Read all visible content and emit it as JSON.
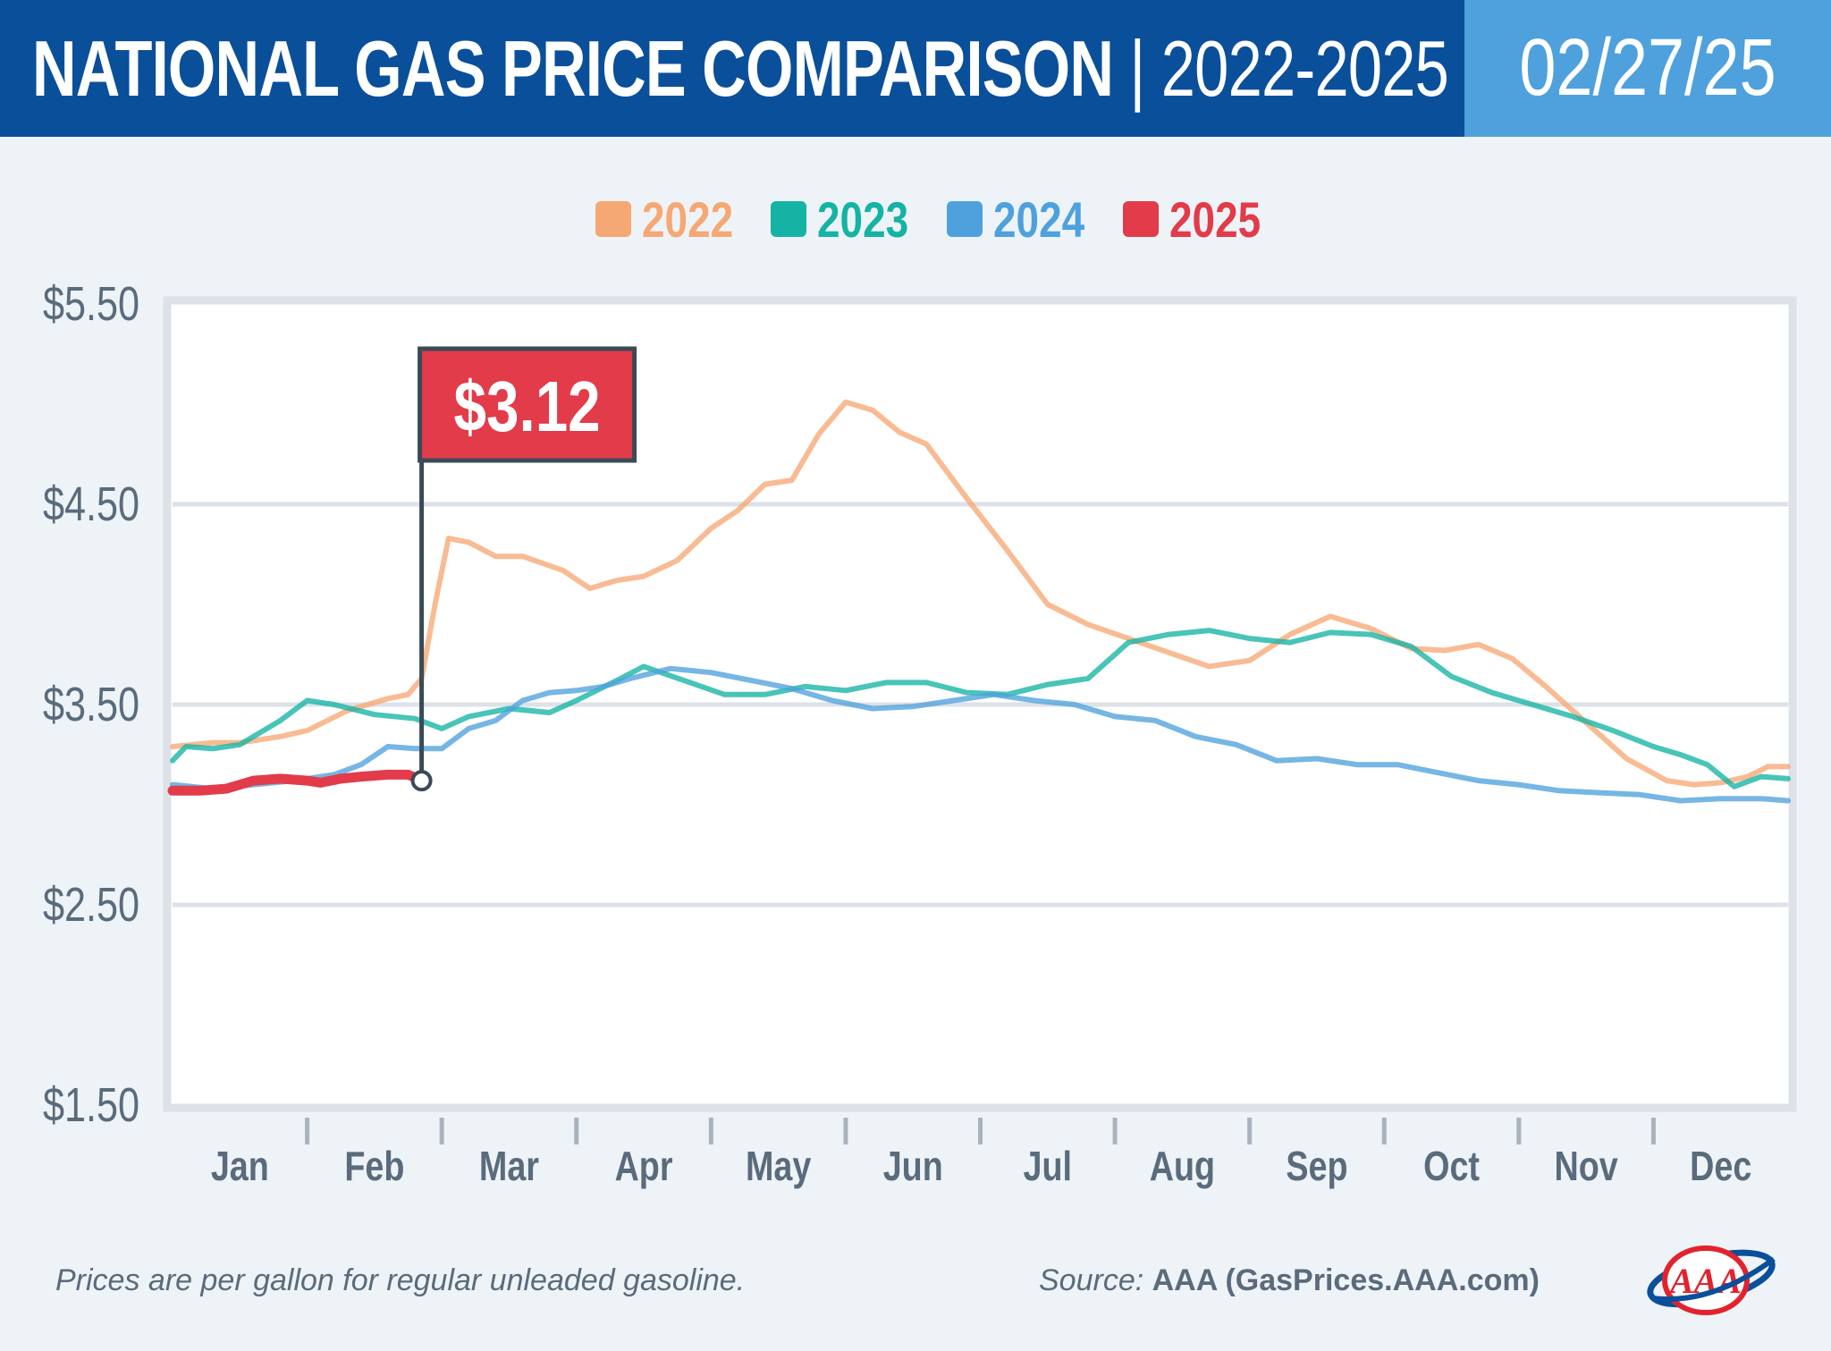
{
  "header": {
    "title_main": "NATIONAL GAS PRICE COMPARISON",
    "title_sep": " | ",
    "title_years": "2022-2025",
    "date": "02/27/25",
    "bg_color": "#0a4f9a",
    "date_bg_color": "#4ea1dc"
  },
  "legend": [
    {
      "label": "2022",
      "color": "#f6a874"
    },
    {
      "label": "2023",
      "color": "#15b3a4"
    },
    {
      "label": "2024",
      "color": "#4ea1dc"
    },
    {
      "label": "2025",
      "color": "#e23b4a"
    }
  ],
  "chart_data": {
    "type": "line",
    "title": "NATIONAL GAS PRICE COMPARISON | 2022-2025",
    "x_labels": [
      "Jan",
      "Feb",
      "Mar",
      "Apr",
      "May",
      "Jun",
      "Jul",
      "Aug",
      "Sep",
      "Oct",
      "Nov",
      "Dec"
    ],
    "x_range": [
      0,
      12
    ],
    "y_ticks": [
      "$5.50",
      "$4.50",
      "$3.50",
      "$2.50",
      "$1.50"
    ],
    "y_tick_values": [
      5.5,
      4.5,
      3.5,
      2.5,
      1.5
    ],
    "ylim": [
      1.5,
      5.5
    ],
    "grid": true,
    "legend_position": "top-center",
    "series": [
      {
        "name": "2022",
        "color": "#f6a874",
        "x": [
          0,
          0.3,
          0.5,
          0.8,
          1.0,
          1.3,
          1.6,
          1.75,
          1.85,
          1.95,
          2.05,
          2.2,
          2.4,
          2.6,
          2.9,
          3.1,
          3.3,
          3.5,
          3.75,
          4.0,
          4.2,
          4.4,
          4.6,
          4.8,
          5.0,
          5.2,
          5.4,
          5.6,
          5.9,
          6.2,
          6.5,
          6.8,
          7.1,
          7.4,
          7.7,
          8.0,
          8.3,
          8.6,
          8.9,
          9.2,
          9.45,
          9.7,
          9.95,
          10.2,
          10.5,
          10.8,
          11.1,
          11.3,
          11.5,
          11.7,
          11.85,
          12.0
        ],
        "y": [
          3.29,
          3.31,
          3.31,
          3.34,
          3.37,
          3.47,
          3.53,
          3.55,
          3.63,
          4.0,
          4.33,
          4.31,
          4.24,
          4.24,
          4.17,
          4.08,
          4.12,
          4.14,
          4.22,
          4.38,
          4.47,
          4.6,
          4.62,
          4.85,
          5.01,
          4.97,
          4.86,
          4.8,
          4.53,
          4.27,
          4.0,
          3.9,
          3.83,
          3.76,
          3.69,
          3.72,
          3.85,
          3.94,
          3.88,
          3.78,
          3.77,
          3.8,
          3.73,
          3.59,
          3.41,
          3.23,
          3.12,
          3.1,
          3.11,
          3.14,
          3.19,
          3.19
        ]
      },
      {
        "name": "2023",
        "color": "#15b3a4",
        "x": [
          0,
          0.1,
          0.3,
          0.5,
          0.8,
          1.0,
          1.2,
          1.5,
          1.8,
          2.0,
          2.2,
          2.5,
          2.8,
          3.0,
          3.3,
          3.5,
          3.8,
          4.1,
          4.4,
          4.7,
          5.0,
          5.3,
          5.6,
          5.9,
          6.2,
          6.5,
          6.8,
          7.1,
          7.4,
          7.7,
          8.0,
          8.3,
          8.6,
          8.9,
          9.2,
          9.5,
          9.8,
          10.1,
          10.4,
          10.7,
          11.0,
          11.2,
          11.4,
          11.6,
          11.8,
          12.0
        ],
        "y": [
          3.22,
          3.29,
          3.28,
          3.3,
          3.42,
          3.52,
          3.5,
          3.45,
          3.43,
          3.38,
          3.44,
          3.48,
          3.46,
          3.52,
          3.62,
          3.69,
          3.62,
          3.55,
          3.55,
          3.59,
          3.57,
          3.61,
          3.61,
          3.56,
          3.55,
          3.6,
          3.63,
          3.81,
          3.85,
          3.87,
          3.83,
          3.81,
          3.86,
          3.85,
          3.79,
          3.64,
          3.56,
          3.5,
          3.44,
          3.37,
          3.29,
          3.25,
          3.2,
          3.09,
          3.14,
          3.13
        ]
      },
      {
        "name": "2024",
        "color": "#4ea1dc",
        "x": [
          0,
          0.3,
          0.6,
          0.9,
          1.2,
          1.4,
          1.6,
          1.8,
          2.0,
          2.2,
          2.4,
          2.6,
          2.8,
          3.0,
          3.2,
          3.4,
          3.7,
          4.0,
          4.3,
          4.6,
          4.9,
          5.2,
          5.5,
          5.8,
          6.1,
          6.4,
          6.7,
          7.0,
          7.3,
          7.6,
          7.9,
          8.2,
          8.5,
          8.8,
          9.1,
          9.4,
          9.7,
          10.0,
          10.3,
          10.6,
          10.9,
          11.2,
          11.5,
          11.8,
          12.0
        ],
        "y": [
          3.1,
          3.08,
          3.1,
          3.12,
          3.15,
          3.2,
          3.29,
          3.28,
          3.28,
          3.38,
          3.42,
          3.52,
          3.56,
          3.57,
          3.59,
          3.63,
          3.68,
          3.66,
          3.62,
          3.58,
          3.52,
          3.48,
          3.49,
          3.52,
          3.55,
          3.52,
          3.5,
          3.44,
          3.42,
          3.34,
          3.3,
          3.22,
          3.23,
          3.2,
          3.2,
          3.16,
          3.12,
          3.1,
          3.07,
          3.06,
          3.05,
          3.02,
          3.03,
          3.03,
          3.02
        ]
      },
      {
        "name": "2025",
        "color": "#e23b4a",
        "x": [
          0,
          0.2,
          0.4,
          0.5,
          0.6,
          0.8,
          1.0,
          1.1,
          1.25,
          1.4,
          1.6,
          1.75,
          1.85
        ],
        "y": [
          3.07,
          3.07,
          3.08,
          3.1,
          3.12,
          3.13,
          3.12,
          3.11,
          3.13,
          3.14,
          3.15,
          3.15,
          3.12
        ]
      }
    ],
    "annotation": {
      "label": "$3.12",
      "x": 1.85,
      "y": 3.12,
      "bg_color": "#e23b4a"
    }
  },
  "footer": {
    "note": "Prices are per gallon for regular unleaded gasoline.",
    "source_label": "Source: ",
    "source_name": "AAA (GasPrices.AAA.com)",
    "logo_text": "AAA"
  }
}
